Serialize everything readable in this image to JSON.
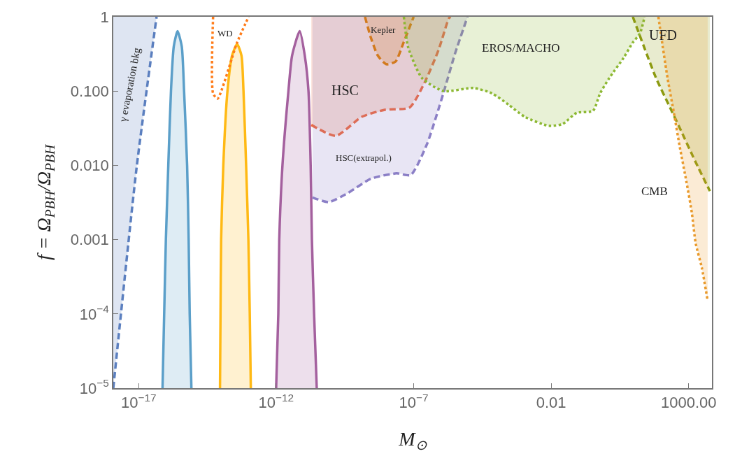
{
  "chart_data": {
    "type": "line",
    "xlabel": "M$_{⊙}$",
    "ylabel": "f = Ω$_{PBH}$/Ω$_{PBH}$",
    "log": "xy",
    "xlim": [
      1.2e-18,
      7000
    ],
    "ylim": [
      1e-05,
      1
    ],
    "xticks": [
      {
        "value": 1e-17,
        "label": "10$^{−17}$"
      },
      {
        "value": 1e-12,
        "label": "10$^{−12}$"
      },
      {
        "value": 1e-07,
        "label": "10$^{−7}$"
      },
      {
        "value": 0.01,
        "label": "0.01"
      },
      {
        "value": 1000,
        "label": "1000.00"
      }
    ],
    "yticks": [
      {
        "value": 1e-05,
        "label": "10$^{−5}$"
      },
      {
        "value": 0.0001,
        "label": "10$^{−4}$"
      },
      {
        "value": 0.001,
        "label": "0.001"
      },
      {
        "value": 0.01,
        "label": "0.010"
      },
      {
        "value": 0.1,
        "label": "0.100"
      },
      1
    ],
    "series": [
      {
        "color": "#5b7fbf",
        "line_style": "dashed",
        "x": [
          1.2e-18,
          8.5e-18,
          4.5e-17
        ],
        "values": [
          1e-05,
          0.0095,
          1
        ],
        "lower": [
          1e-05,
          0.0095,
          1
        ],
        "upper": [
          1,
          1,
          1
        ]
      },
      {
        "type": "area",
        "color": "#5b9fc9",
        "line_style": "solid",
        "x": [
          7.4e-17,
          8.5e-17,
          9.8e-17,
          1.2e-16,
          1.5e-16,
          1.9e-16,
          2.6e-16,
          3.7e-16,
          4.5e-16,
          5.8e-16,
          6.6e-16,
          7.2e-16,
          8.3e-16
        ],
        "values": [
          1e-05,
          0.0001,
          0.001,
          0.01,
          0.1,
          0.4,
          0.64,
          0.4,
          0.1,
          0.01,
          0.001,
          0.0001,
          1e-05
        ]
      },
      {
        "type": "area",
        "color": "#ffb914",
        "line_style": "solid",
        "x": [
          9.1e-15,
          9.5e-15,
          1e-14,
          1.2e-14,
          1.7e-14,
          2.5e-14,
          3.8e-14,
          5.5e-14,
          6.5e-14,
          8.1e-14,
          9.8e-14,
          1.1e-13,
          1.2e-13
        ],
        "values": [
          1e-05,
          0.0001,
          0.001,
          0.01,
          0.1,
          0.3,
          0.43,
          0.3,
          0.1,
          0.01,
          0.001,
          0.0001,
          1e-05
        ]
      },
      {
        "type": "area",
        "color": "#a4609e",
        "line_style": "solid",
        "x": [
          1e-12,
          1.2e-12,
          1.3e-12,
          1.7e-12,
          2.8e-12,
          3.8e-12,
          7.2e-12,
          1.1e-11,
          1.5e-11,
          1.8e-11,
          2e-11,
          2.4e-11,
          3e-11
        ],
        "values": [
          1e-05,
          0.0001,
          0.001,
          0.01,
          0.1,
          0.3,
          0.64,
          0.3,
          0.1,
          0.01,
          0.001,
          0.0001,
          1e-05
        ]
      },
      {
        "color": "#ff7c1a",
        "line_style": "dotted",
        "x": [
          5.1e-15,
          5.1e-15,
          7.4e-15,
          3.8e-14,
          1e-13
        ],
        "values": [
          1,
          0.093,
          0.079,
          0.45,
          1
        ]
      },
      {
        "color": "#f26a3b",
        "line_style": "dashed",
        "x": [
          1.9e-11,
          1.5e-10,
          1.3e-09,
          8.9e-09,
          7.1e-08,
          2.5e-07,
          8.1e-07,
          1.9e-06,
          2.2e-06
        ],
        "values": [
          0.035,
          0.025,
          0.045,
          0.056,
          0.06,
          0.13,
          0.36,
          0.95,
          1
        ],
        "lower": [
          0.035,
          0.025,
          0.045,
          0.056,
          0.06,
          0.13,
          0.36,
          0.95,
          1
        ],
        "upper": [
          1,
          1,
          1,
          1,
          1,
          1,
          1,
          1,
          1
        ]
      },
      {
        "color": "#8b7fc6",
        "line_style": "dashed",
        "x": [
          2.1e-11,
          8.1e-11,
          3.9e-10,
          2.8e-09,
          2.4e-08,
          7.8e-08,
          3e-07,
          1.2e-06,
          3.2e-06,
          9.1e-06
        ],
        "values": [
          0.0037,
          0.0032,
          0.0042,
          0.0066,
          0.0078,
          0.0074,
          0.019,
          0.093,
          0.32,
          1
        ],
        "lower": [
          0.0037,
          0.0032,
          0.0042,
          0.0066,
          0.0078,
          0.0074,
          0.019,
          0.093,
          0.32,
          1
        ],
        "upper": [
          1,
          1,
          1,
          1,
          1,
          1,
          1,
          1,
          1,
          1
        ]
      },
      {
        "color": "#d27a1e",
        "line_style": "dashed",
        "x": [
          1.7e-09,
          2.8e-09,
          5e-09,
          1e-08,
          2.2e-08,
          4.3e-08,
          1e-07
        ],
        "values": [
          1,
          0.52,
          0.3,
          0.23,
          0.25,
          0.45,
          1
        ],
        "lower": [
          1,
          0.52,
          0.3,
          0.23,
          0.25,
          0.45,
          1
        ],
        "upper": [
          1,
          1,
          1,
          1,
          1,
          1,
          1
        ]
      },
      {
        "color": "#8cb832",
        "line_style": "dotted",
        "x": [
          4.4e-08,
          6.3e-08,
          2e-07,
          1.2e-06,
          1.5e-05,
          7.2e-05,
          0.00029,
          0.0011,
          0.0081,
          0.026,
          0.085,
          0.33,
          0.6,
          1.3,
          4.3,
          9.3,
          17,
          25
        ],
        "values": [
          1,
          0.39,
          0.15,
          0.1,
          0.11,
          0.093,
          0.065,
          0.045,
          0.034,
          0.036,
          0.051,
          0.054,
          0.093,
          0.15,
          0.28,
          0.45,
          0.6,
          1
        ],
        "lower": [
          1,
          0.39,
          0.15,
          0.1,
          0.11,
          0.093,
          0.065,
          0.045,
          0.034,
          0.036,
          0.051,
          0.054,
          0.093,
          0.15,
          0.28,
          0.45,
          0.6,
          1
        ],
        "upper": [
          1,
          1,
          1,
          1,
          1,
          1,
          1,
          1,
          1,
          1,
          1,
          1,
          1,
          1,
          1,
          1,
          1,
          1
        ]
      },
      {
        "color": "#8c9a10",
        "line_style": "dashed",
        "x": [
          9.3,
          65,
          210,
          470,
          1800,
          5900
        ],
        "values": [
          1,
          0.15,
          0.06,
          0.032,
          0.011,
          0.0045
        ],
        "lower": [
          1,
          0.15,
          0.06,
          0.032,
          0.011,
          0.0045
        ],
        "upper": [
          1,
          1,
          1,
          1,
          1,
          1
        ]
      },
      {
        "color": "#e99a2c",
        "line_style": "dotted",
        "x": [
          79,
          170,
          290,
          470,
          830,
          1300,
          1800,
          3000,
          4900
        ],
        "values": [
          1,
          0.15,
          0.051,
          0.018,
          0.006,
          0.0023,
          0.00089,
          0.00042,
          0.00015
        ],
        "lower": [
          1,
          0.15,
          0.051,
          0.018,
          0.006,
          0.0023,
          0.00089,
          0.00042,
          0.00015
        ],
        "upper": [
          1,
          1,
          1,
          1,
          1,
          1,
          1,
          1,
          1
        ]
      }
    ],
    "annotations": [
      "γ evaporation bkg",
      "WD",
      "Kepler",
      "HSC",
      "HSC(extrapol.)",
      "EROS/MACHO",
      "UFD",
      "CMB"
    ]
  }
}
